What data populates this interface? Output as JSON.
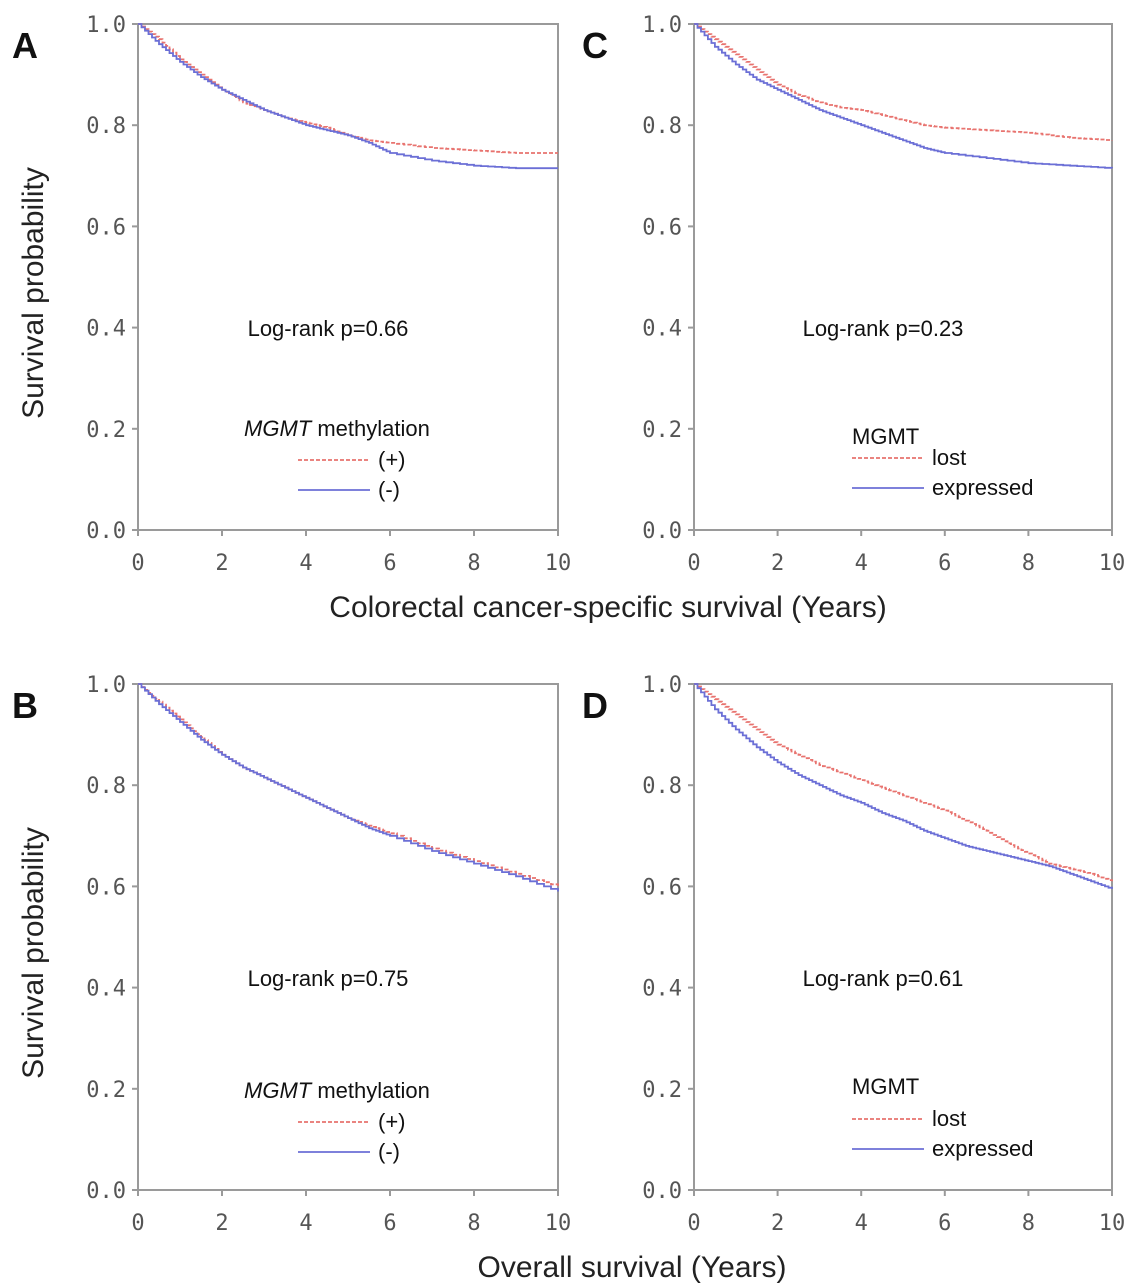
{
  "figure": {
    "row_xlabels": [
      "Colorectal cancer-specific survival (Years)",
      "Overall  survival (Years)"
    ],
    "ylabel": "Survival probability",
    "colors": {
      "series_a": "#e8736f",
      "series_b": "#6b6fd6"
    }
  },
  "chart_data": [
    {
      "panel": "A",
      "type": "line",
      "annotation": "Log-rank p=0.66",
      "legend": {
        "title_italic": "MGMT",
        "title_rest": " methylation",
        "placement": "bottom-center"
      },
      "xlim": [
        0,
        10
      ],
      "ylim": [
        0,
        1
      ],
      "x_ticks": [
        "0",
        "2",
        "4",
        "6",
        "8",
        "10"
      ],
      "y_ticks": [
        "0.0",
        "0.2",
        "0.4",
        "0.6",
        "0.8",
        "1.0"
      ],
      "grid": false,
      "series": [
        {
          "name": "(+)",
          "dash": true,
          "x": [
            0,
            0.5,
            1,
            1.5,
            2,
            2.5,
            3,
            3.5,
            4,
            4.5,
            5,
            5.5,
            6,
            7,
            8,
            9,
            10
          ],
          "y": [
            1.0,
            0.97,
            0.93,
            0.9,
            0.87,
            0.845,
            0.83,
            0.815,
            0.805,
            0.795,
            0.78,
            0.77,
            0.765,
            0.755,
            0.75,
            0.745,
            0.745
          ]
        },
        {
          "name": "(-)",
          "dash": false,
          "x": [
            0,
            0.5,
            1,
            1.5,
            2,
            2.5,
            3,
            3.5,
            4,
            4.5,
            5,
            5.5,
            6,
            7,
            8,
            9,
            10
          ],
          "y": [
            1.0,
            0.96,
            0.925,
            0.895,
            0.87,
            0.85,
            0.83,
            0.815,
            0.8,
            0.79,
            0.78,
            0.765,
            0.745,
            0.73,
            0.72,
            0.715,
            0.715
          ]
        }
      ]
    },
    {
      "panel": "C",
      "type": "line",
      "annotation": "Log-rank p=0.23",
      "legend": {
        "title_italic": "",
        "title_rest": "MGMT",
        "placement": "bottom-center"
      },
      "xlim": [
        0,
        10
      ],
      "ylim": [
        0,
        1
      ],
      "x_ticks": [
        "0",
        "2",
        "4",
        "6",
        "8",
        "10"
      ],
      "y_ticks": [
        "0.0",
        "0.2",
        "0.4",
        "0.6",
        "0.8",
        "1.0"
      ],
      "grid": false,
      "series": [
        {
          "name": "lost",
          "dash": true,
          "x": [
            0,
            0.5,
            1,
            1.5,
            2,
            2.5,
            3,
            3.5,
            4,
            4.5,
            5,
            5.5,
            6,
            7,
            8,
            9,
            10
          ],
          "y": [
            1.0,
            0.97,
            0.94,
            0.91,
            0.88,
            0.86,
            0.845,
            0.835,
            0.83,
            0.82,
            0.81,
            0.8,
            0.795,
            0.79,
            0.785,
            0.775,
            0.77
          ]
        },
        {
          "name": "expressed",
          "dash": false,
          "x": [
            0,
            0.5,
            1,
            1.5,
            2,
            2.5,
            3,
            3.5,
            4,
            4.5,
            5,
            5.5,
            6,
            7,
            8,
            9,
            10
          ],
          "y": [
            1.0,
            0.955,
            0.92,
            0.89,
            0.87,
            0.85,
            0.83,
            0.815,
            0.8,
            0.785,
            0.77,
            0.755,
            0.745,
            0.735,
            0.725,
            0.72,
            0.715
          ]
        }
      ]
    },
    {
      "panel": "B",
      "type": "line",
      "annotation": "Log-rank p=0.75",
      "legend": {
        "title_italic": "MGMT",
        "title_rest": " methylation",
        "placement": "bottom-center"
      },
      "xlim": [
        0,
        10
      ],
      "ylim": [
        0,
        1
      ],
      "x_ticks": [
        "0",
        "2",
        "4",
        "6",
        "8",
        "10"
      ],
      "y_ticks": [
        "0.0",
        "0.2",
        "0.4",
        "0.6",
        "0.8",
        "1.0"
      ],
      "grid": false,
      "series": [
        {
          "name": "(+)",
          "dash": true,
          "x": [
            0,
            0.5,
            1,
            1.5,
            2,
            2.5,
            3,
            3.5,
            4,
            4.5,
            5,
            5.5,
            6,
            7,
            8,
            9,
            10
          ],
          "y": [
            1.0,
            0.965,
            0.93,
            0.895,
            0.86,
            0.835,
            0.815,
            0.795,
            0.775,
            0.755,
            0.735,
            0.72,
            0.705,
            0.675,
            0.65,
            0.625,
            0.6
          ]
        },
        {
          "name": "(-)",
          "dash": false,
          "x": [
            0,
            0.5,
            1,
            1.5,
            2,
            2.5,
            3,
            3.5,
            4,
            4.5,
            5,
            5.5,
            6,
            7,
            8,
            9,
            10
          ],
          "y": [
            1.0,
            0.96,
            0.925,
            0.89,
            0.86,
            0.835,
            0.815,
            0.795,
            0.775,
            0.755,
            0.735,
            0.715,
            0.7,
            0.67,
            0.645,
            0.62,
            0.59
          ]
        }
      ]
    },
    {
      "panel": "D",
      "type": "line",
      "annotation": "Log-rank p=0.61",
      "legend": {
        "title_italic": "",
        "title_rest": "MGMT",
        "placement": "bottom-center"
      },
      "xlim": [
        0,
        10
      ],
      "ylim": [
        0,
        1
      ],
      "x_ticks": [
        "0",
        "2",
        "4",
        "6",
        "8",
        "10"
      ],
      "y_ticks": [
        "0.0",
        "0.2",
        "0.4",
        "0.6",
        "0.8",
        "1.0"
      ],
      "grid": false,
      "series": [
        {
          "name": "lost",
          "dash": true,
          "x": [
            0,
            0.5,
            1,
            1.5,
            2,
            2.5,
            3,
            3.5,
            4,
            4.5,
            5,
            5.5,
            6,
            6.5,
            7,
            7.5,
            8,
            8.5,
            9,
            9.5,
            10
          ],
          "y": [
            1.0,
            0.97,
            0.94,
            0.91,
            0.88,
            0.86,
            0.84,
            0.825,
            0.81,
            0.795,
            0.78,
            0.765,
            0.75,
            0.73,
            0.71,
            0.685,
            0.665,
            0.645,
            0.635,
            0.625,
            0.61
          ]
        },
        {
          "name": "expressed",
          "dash": false,
          "x": [
            0,
            0.5,
            1,
            1.5,
            2,
            2.5,
            3,
            3.5,
            4,
            4.5,
            5,
            5.5,
            6,
            6.5,
            7,
            7.5,
            8,
            8.5,
            9,
            9.5,
            10
          ],
          "y": [
            1.0,
            0.95,
            0.91,
            0.875,
            0.845,
            0.82,
            0.8,
            0.78,
            0.765,
            0.745,
            0.73,
            0.71,
            0.695,
            0.68,
            0.67,
            0.66,
            0.65,
            0.64,
            0.625,
            0.61,
            0.595
          ]
        }
      ]
    }
  ]
}
